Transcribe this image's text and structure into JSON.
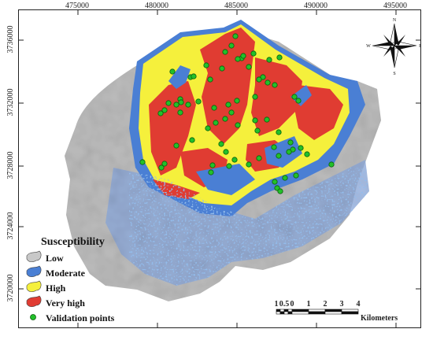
{
  "x_axis": {
    "ticks": [
      "475000",
      "480000",
      "485000",
      "490000",
      "495000"
    ]
  },
  "y_axis": {
    "ticks": [
      "3736000",
      "3732000",
      "3728000",
      "3724000",
      "3720000"
    ]
  },
  "legend": {
    "title": "Susceptibility",
    "items": [
      {
        "label": "Low",
        "color": "#c8c8c8"
      },
      {
        "label": "Moderate",
        "color": "#4a7fd4"
      },
      {
        "label": "High",
        "color": "#f5f03c"
      },
      {
        "label": "Very high",
        "color": "#e03c32"
      },
      {
        "label": "Validation points",
        "color": "#22c02a"
      }
    ]
  },
  "scale_bar": {
    "labels": [
      "1",
      "0.5",
      "0",
      "1",
      "2",
      "3",
      "4"
    ],
    "unit": "Kilometers"
  },
  "north_arrow": {
    "labels": {
      "n": "N",
      "e": "E",
      "w": "W",
      "s": "S"
    },
    "icon": "compass-rose-icon"
  },
  "colors": {
    "hillshade": "#b5b5b5",
    "low": "#c8c8c8",
    "moderate": "#4a7fd4",
    "high": "#f5f03c",
    "very_high": "#e03c32",
    "validation": "#22c02a"
  }
}
